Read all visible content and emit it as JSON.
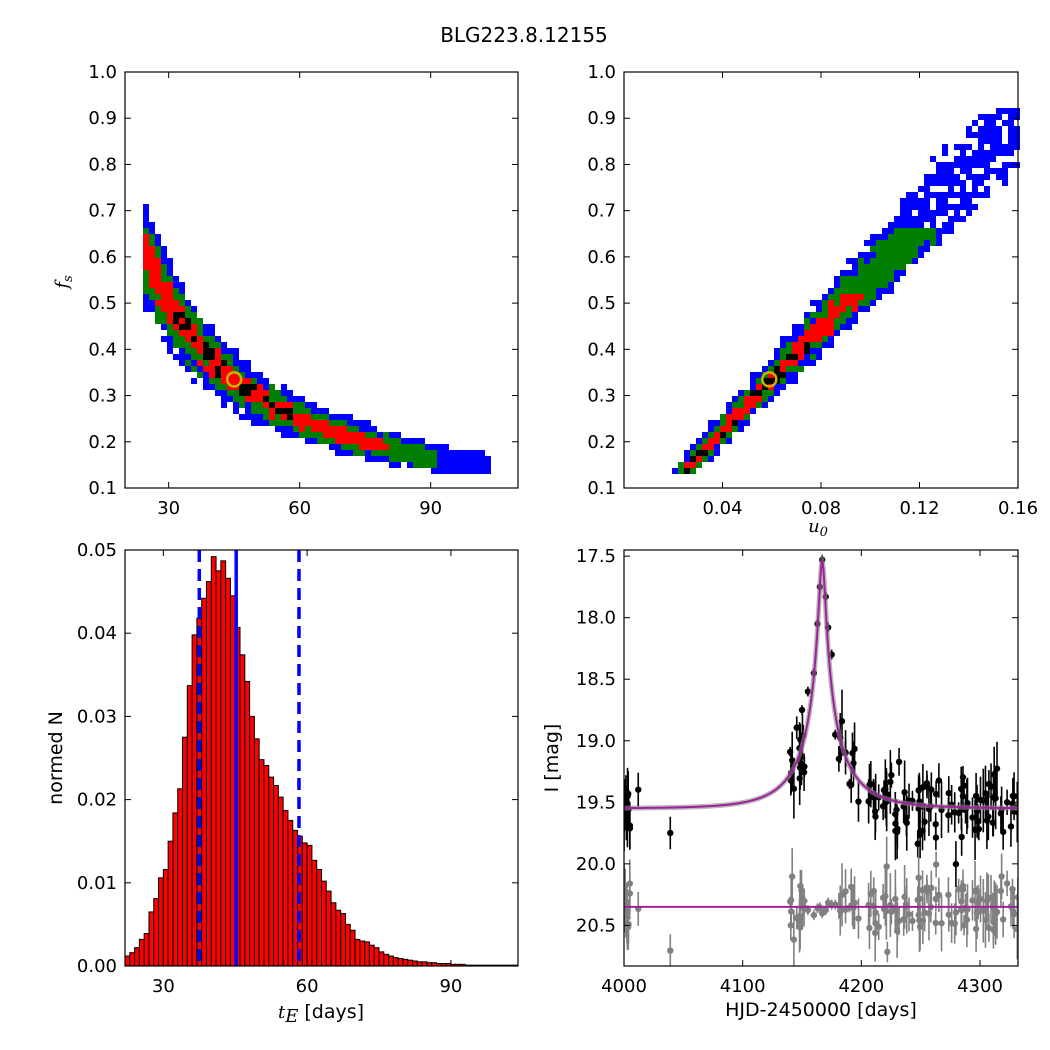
{
  "figure_title": "BLG223.8.12155",
  "chart_data": [
    {
      "id": "fs_vs_tE",
      "type": "heatmap",
      "xlabel": "",
      "ylabel": "f",
      "ylabel_sub": "s",
      "xlim": [
        20,
        110
      ],
      "ylim": [
        0.1,
        1.0
      ],
      "xticks": [
        30,
        60,
        90
      ],
      "yticks": [
        0.1,
        0.2,
        0.3,
        0.4,
        0.5,
        0.6,
        0.7,
        0.8,
        0.9,
        1.0
      ],
      "ytick_labels": [
        "0.1",
        "0.2",
        "0.3",
        "0.4",
        "0.5",
        "0.6",
        "0.7",
        "0.8",
        "0.9",
        "1.0"
      ],
      "density_colors": {
        "outer": "#0000ff",
        "middle": "#007f00",
        "inner": "#ff0000",
        "core": "#000000"
      },
      "best_fit": {
        "x": 45,
        "y": 0.335,
        "marker_color": "#c8b400"
      }
    },
    {
      "id": "fs_vs_u0",
      "type": "heatmap",
      "xlabel": "u",
      "xlabel_sub": "0",
      "ylabel": "",
      "xlim": [
        0.0,
        0.16
      ],
      "ylim": [
        0.1,
        1.0
      ],
      "xticks": [
        0.04,
        0.08,
        0.12,
        0.16
      ],
      "xtick_labels": [
        "0.04",
        "0.08",
        "0.12",
        "0.16"
      ],
      "yticks": [
        0.1,
        0.2,
        0.3,
        0.4,
        0.5,
        0.6,
        0.7,
        0.8,
        0.9,
        1.0
      ],
      "ytick_labels": [
        "0.1",
        "0.2",
        "0.3",
        "0.4",
        "0.5",
        "0.6",
        "0.7",
        "0.8",
        "0.9",
        "1.0"
      ],
      "best_fit": {
        "x": 0.059,
        "y": 0.335,
        "marker_color": "#c8b400"
      }
    },
    {
      "id": "tE_histogram",
      "type": "bar",
      "xlabel": "t",
      "xlabel_sub": "E",
      "xlabel_suffix": " [days]",
      "ylabel": "normed N",
      "xlim": [
        22,
        104
      ],
      "ylim": [
        0.0,
        0.05
      ],
      "xticks": [
        30,
        60,
        90
      ],
      "yticks": [
        0.0,
        0.01,
        0.02,
        0.03,
        0.04,
        0.05
      ],
      "ytick_labels": [
        "0.00",
        "0.01",
        "0.02",
        "0.03",
        "0.04",
        "0.05"
      ],
      "bin_start": 22,
      "bin_width": 1,
      "values": [
        0.0012,
        0.0016,
        0.0022,
        0.0032,
        0.0039,
        0.0065,
        0.0081,
        0.0106,
        0.0116,
        0.015,
        0.0184,
        0.0213,
        0.0275,
        0.0337,
        0.0398,
        0.0418,
        0.0442,
        0.0462,
        0.0492,
        0.0475,
        0.0487,
        0.0466,
        0.0445,
        0.0407,
        0.0374,
        0.0342,
        0.03,
        0.0273,
        0.0248,
        0.0241,
        0.0227,
        0.0217,
        0.0203,
        0.0187,
        0.0175,
        0.0163,
        0.0156,
        0.0148,
        0.0145,
        0.0127,
        0.0116,
        0.0102,
        0.009,
        0.0076,
        0.0067,
        0.0063,
        0.005,
        0.0043,
        0.0032,
        0.003,
        0.0029,
        0.0025,
        0.0022,
        0.0017,
        0.0014,
        0.0012,
        0.001,
        0.0009,
        0.0008,
        0.0007,
        0.0006,
        0.0005,
        0.0005,
        0.0004,
        0.0004,
        0.0003,
        0.0003,
        0.0003,
        0.0002,
        0.0002,
        0.0002,
        0.0001,
        0.0001,
        0.0001,
        0.0001,
        0.0001,
        0.0001,
        0.0001,
        0.0001,
        0.0001,
        0.0001,
        0.0001
      ],
      "bar_color": "#ff0000",
      "vlines": [
        {
          "x": 37.5,
          "style": "dashed",
          "color": "#0000ff"
        },
        {
          "x": 45.2,
          "style": "solid",
          "color": "#0000ff"
        },
        {
          "x": 58.3,
          "style": "dashed",
          "color": "#0000ff"
        }
      ]
    },
    {
      "id": "light_curve",
      "type": "scatter",
      "xlabel": "HJD-2450000 [days]",
      "ylabel": "I [mag]",
      "xlim": [
        4000,
        4332
      ],
      "ylim": [
        20.83,
        17.45
      ],
      "xticks": [
        4000,
        4100,
        4200,
        4300
      ],
      "yticks": [
        17.5,
        18.0,
        18.5,
        19.0,
        19.5,
        20.0,
        20.5
      ],
      "ytick_labels": [
        "17.5",
        "18.0",
        "18.5",
        "19.0",
        "19.5",
        "20.0",
        "20.5"
      ],
      "model": {
        "t0": 4167,
        "tE": 45,
        "u0": 0.059,
        "fs": 0.335,
        "baseline": 19.55,
        "color": "#a020a0"
      },
      "residual_baseline": 20.35,
      "series": [
        {
          "color": "#000000",
          "description_values": "photometry"
        },
        {
          "color": "#808080",
          "description_values": "residuals"
        }
      ],
      "peak_points": [
        {
          "x": 4140,
          "y": 19.09
        },
        {
          "x": 4150,
          "y": 18.75
        },
        {
          "x": 4155,
          "y": 18.6
        },
        {
          "x": 4160,
          "y": 18.45
        },
        {
          "x": 4163,
          "y": 18.05
        },
        {
          "x": 4165,
          "y": 17.75
        },
        {
          "x": 4167,
          "y": 17.53
        },
        {
          "x": 4170,
          "y": 17.83
        },
        {
          "x": 4172,
          "y": 18.08
        },
        {
          "x": 4175,
          "y": 18.3
        },
        {
          "x": 4178,
          "y": 18.95
        },
        {
          "x": 4183,
          "y": 19.1
        },
        {
          "x": 4190,
          "y": 19.35
        }
      ]
    }
  ]
}
